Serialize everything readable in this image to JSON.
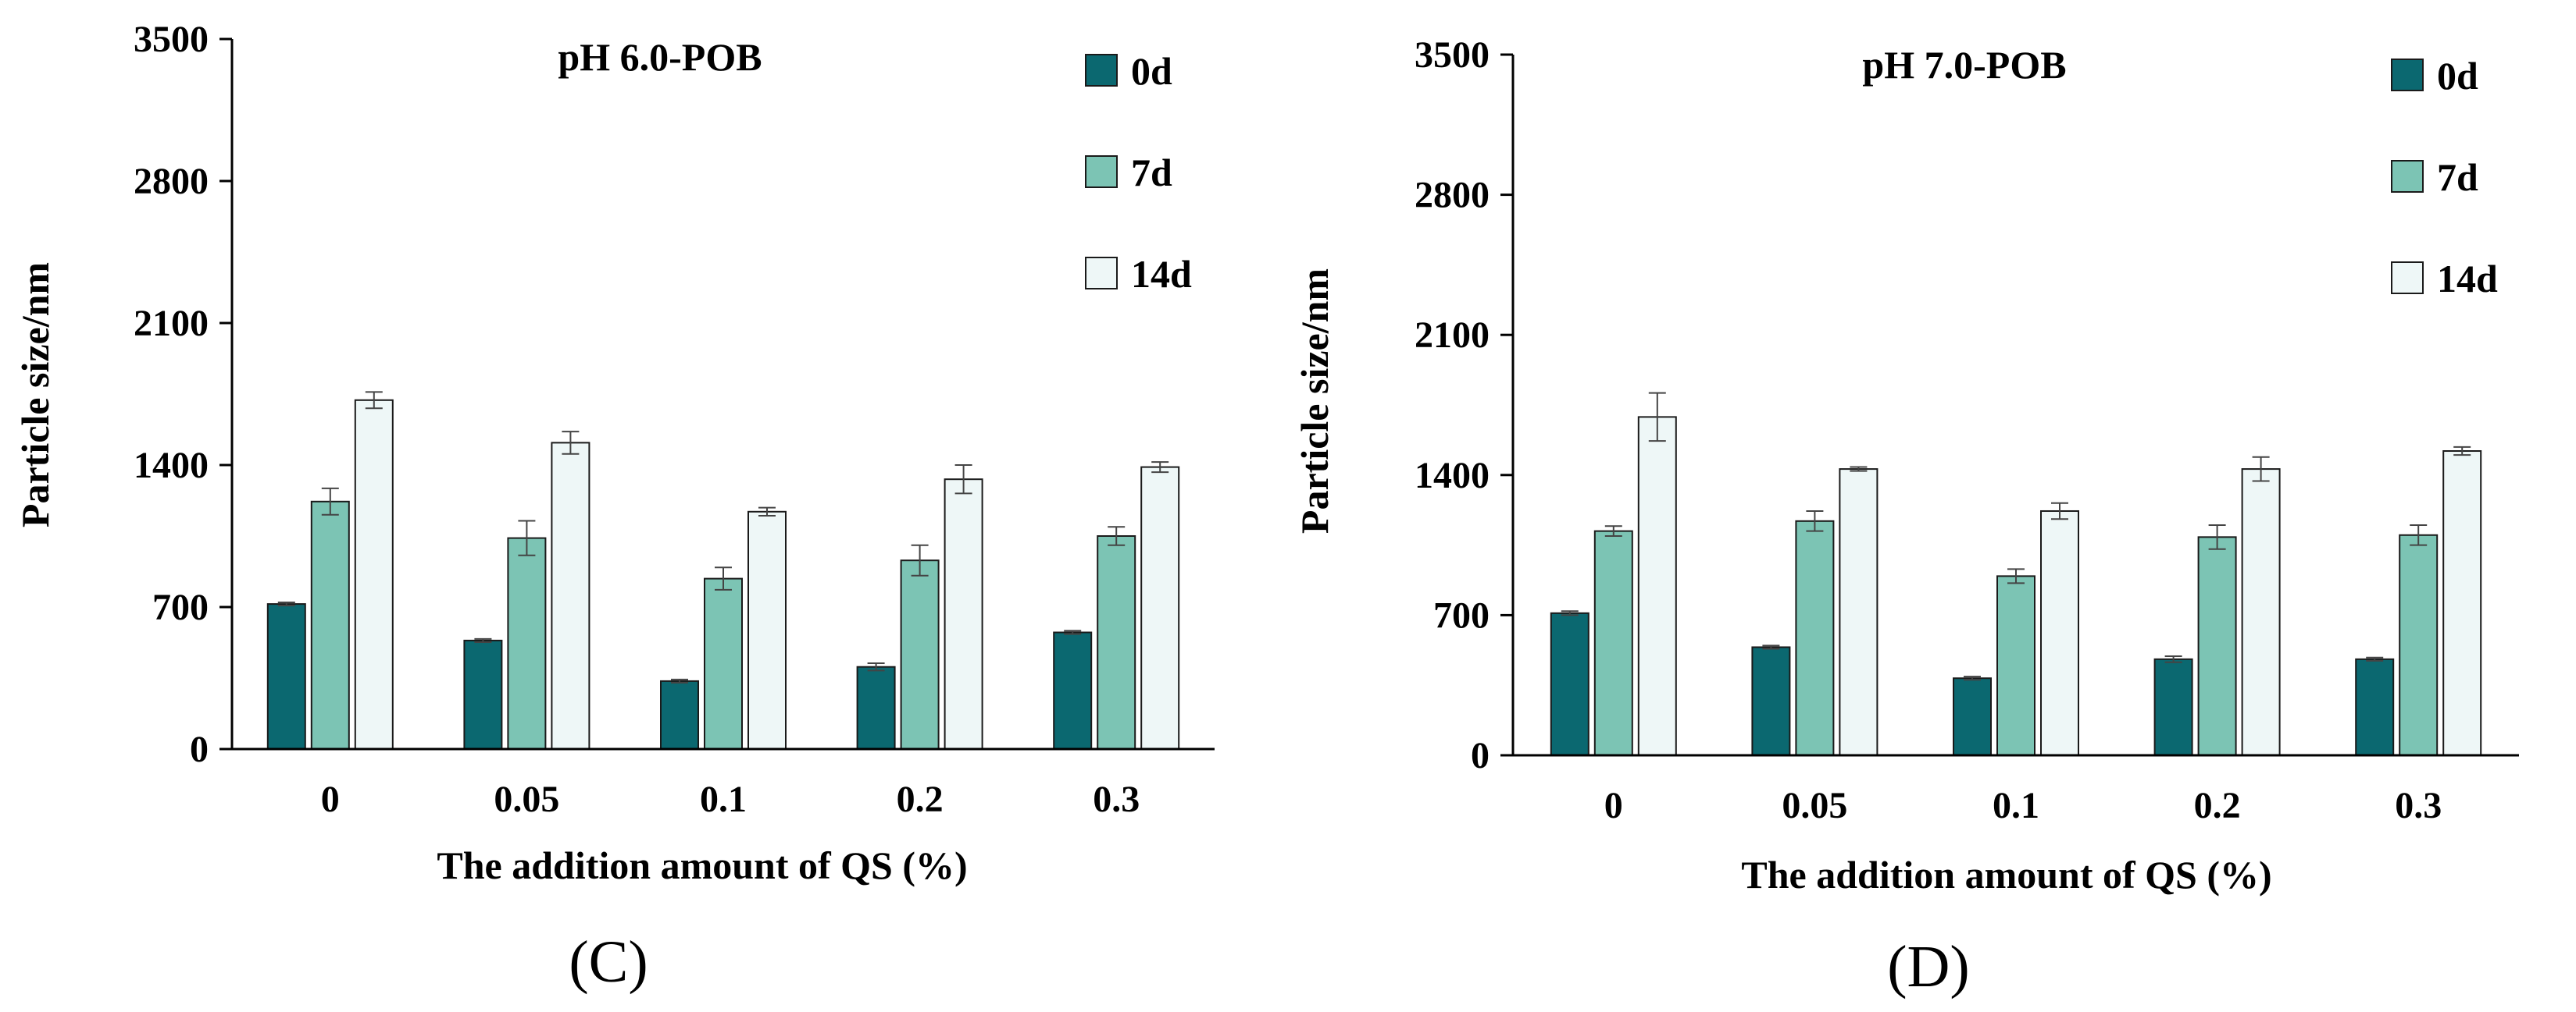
{
  "chart_data": [
    {
      "type": "bar",
      "title": "pH 6.0-POB",
      "panel_label": "(C)",
      "xlabel": "The addition amount of QS (%)",
      "ylabel": "Particle size/nm",
      "categories": [
        "0",
        "0.05",
        "0.1",
        "0.2",
        "0.3"
      ],
      "ylim": [
        0,
        3500
      ],
      "yticks": [
        0,
        700,
        1400,
        2100,
        2800,
        3500
      ],
      "ytick_labels": [
        "0",
        "700",
        "1400",
        "2100",
        "2800",
        "3500"
      ],
      "legend_position": "top-right",
      "grid": false,
      "series": [
        {
          "name": "0d",
          "color": "#0b6870",
          "values": [
            715,
            535,
            335,
            405,
            575
          ],
          "errors": [
            8,
            8,
            8,
            18,
            8
          ]
        },
        {
          "name": "7d",
          "color": "#7cc4b4",
          "values": [
            1220,
            1040,
            840,
            930,
            1050
          ],
          "errors": [
            65,
            85,
            55,
            75,
            45
          ]
        },
        {
          "name": "14d",
          "color": "#eef7f7",
          "values": [
            1720,
            1510,
            1170,
            1330,
            1390
          ],
          "errors": [
            40,
            55,
            20,
            70,
            25
          ]
        }
      ]
    },
    {
      "type": "bar",
      "title": "pH 7.0-POB",
      "panel_label": "(D)",
      "xlabel": "The addition amount of QS (%)",
      "ylabel": "Particle size/nm",
      "categories": [
        "0",
        "0.05",
        "0.1",
        "0.2",
        "0.3"
      ],
      "ylim": [
        0,
        3500
      ],
      "yticks": [
        0,
        700,
        1400,
        2100,
        2800,
        3500
      ],
      "ytick_labels": [
        "0",
        "700",
        "1400",
        "2100",
        "2800",
        "3500"
      ],
      "legend_position": "top-right",
      "grid": false,
      "series": [
        {
          "name": "0d",
          "color": "#0b6870",
          "values": [
            710,
            540,
            385,
            480,
            480
          ],
          "errors": [
            10,
            8,
            8,
            15,
            8
          ]
        },
        {
          "name": "7d",
          "color": "#7cc4b4",
          "values": [
            1120,
            1170,
            895,
            1090,
            1100
          ],
          "errors": [
            25,
            50,
            35,
            60,
            50
          ]
        },
        {
          "name": "14d",
          "color": "#eef7f7",
          "values": [
            1690,
            1430,
            1220,
            1430,
            1520
          ],
          "errors": [
            120,
            10,
            40,
            60,
            20
          ]
        }
      ]
    }
  ]
}
